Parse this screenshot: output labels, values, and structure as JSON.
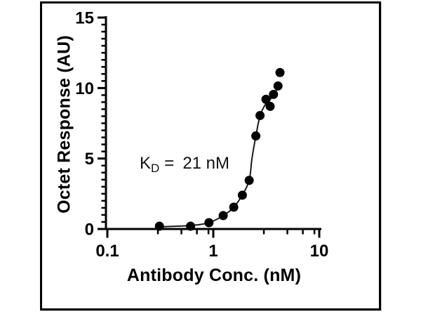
{
  "figure": {
    "background": "#ffffff",
    "frame_color": "#000000",
    "ink_color": "#000000"
  },
  "chart_data": {
    "type": "scatter",
    "title": "",
    "xlabel": "Antibody Conc. (nM)",
    "ylabel": "Octet Response (AU)",
    "x_scale": "log",
    "xlim": [
      0.1,
      10
    ],
    "ylim": [
      0,
      15
    ],
    "grid": false,
    "legend": "none",
    "x_major_ticks": [
      {
        "value": 0.1,
        "label": "0.1"
      },
      {
        "value": 1,
        "label": "1"
      },
      {
        "value": 10,
        "label": "10"
      }
    ],
    "x_minor_ticks": [
      0.3,
      0.5,
      0.7,
      0.9,
      3,
      5,
      7,
      9
    ],
    "y_major_ticks": [
      {
        "value": 0,
        "label": "0"
      },
      {
        "value": 5,
        "label": "5"
      },
      {
        "value": 10,
        "label": "10"
      },
      {
        "value": 15,
        "label": "15"
      }
    ],
    "y_minor_step": 0.5,
    "marker_color": "#000000",
    "line_color": "#1a1a1a",
    "points": [
      [
        0.31,
        0.2
      ],
      [
        0.61,
        0.2
      ],
      [
        0.91,
        0.45
      ],
      [
        1.24,
        0.95
      ],
      [
        1.56,
        1.55
      ],
      [
        1.88,
        2.4
      ],
      [
        2.18,
        3.45
      ],
      [
        2.52,
        6.6
      ],
      [
        2.76,
        8.05
      ],
      [
        3.14,
        9.2
      ],
      [
        3.44,
        8.7
      ],
      [
        3.7,
        9.55
      ],
      [
        4.08,
        10.15
      ],
      [
        4.26,
        11.1
      ]
    ],
    "fit_curve": [
      [
        0.31,
        0.15
      ],
      [
        0.61,
        0.25
      ],
      [
        0.91,
        0.45
      ],
      [
        1.24,
        0.95
      ],
      [
        1.56,
        1.54
      ],
      [
        1.87,
        2.39
      ],
      [
        2.18,
        3.44
      ],
      [
        2.32,
        5.03
      ],
      [
        2.52,
        6.58
      ],
      [
        2.76,
        8.02
      ],
      [
        3.12,
        8.87
      ],
      [
        3.52,
        9.27
      ],
      [
        3.85,
        9.72
      ],
      [
        4.1,
        10.16
      ]
    ],
    "annotation": {
      "symbol": "K",
      "subscript": "D",
      "operator": "=",
      "value": "21 nM"
    }
  }
}
